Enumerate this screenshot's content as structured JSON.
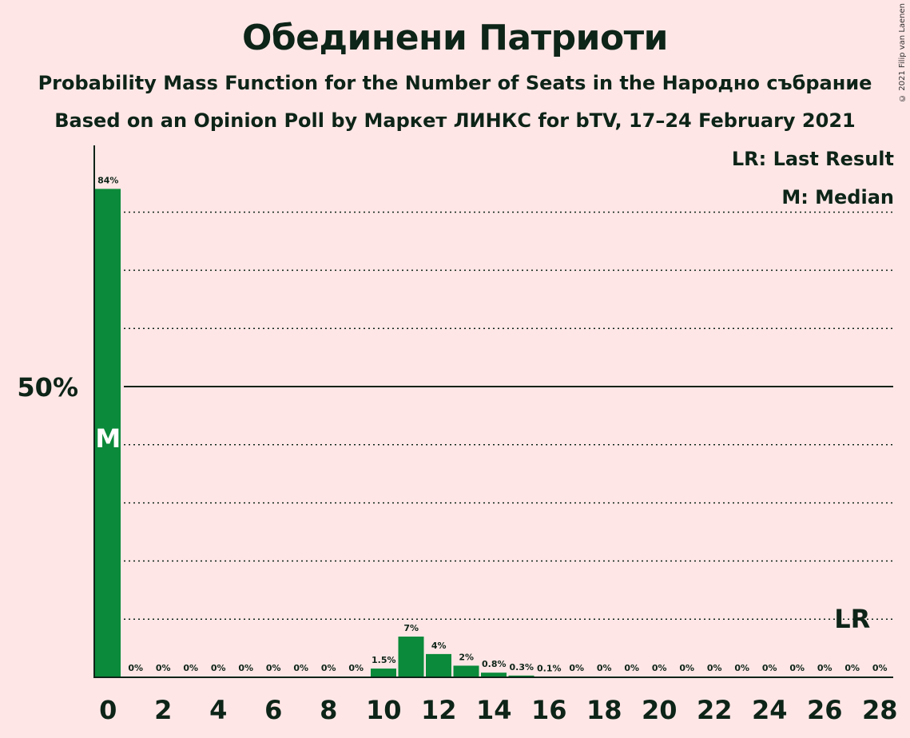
{
  "title": "Обединени Патриоти",
  "subtitle_1": "Probability Mass Function for the Number of Seats in the Народно събрание",
  "subtitle_2": "Based on an Opinion Poll by Маркет ЛИНКС for bTV, 17–24 February 2021",
  "copyright": "© 2021 Filip van Laenen",
  "legend": {
    "last_result": "LR: Last Result",
    "median": "M: Median"
  },
  "colors": {
    "bar": "#0a8a3a",
    "background": "#ffe6e6",
    "text": "#0d2418"
  },
  "chart_data": {
    "type": "bar",
    "x": [
      0,
      1,
      2,
      3,
      4,
      5,
      6,
      7,
      8,
      9,
      10,
      11,
      12,
      13,
      14,
      15,
      16,
      17,
      18,
      19,
      20,
      21,
      22,
      23,
      24,
      25,
      26,
      27,
      28
    ],
    "values": [
      84,
      0,
      0,
      0,
      0,
      0,
      0,
      0,
      0,
      0,
      1.5,
      7,
      4,
      2,
      0.8,
      0.3,
      0.1,
      0,
      0,
      0,
      0,
      0,
      0,
      0,
      0,
      0,
      0,
      0,
      0
    ],
    "data_labels": [
      "84%",
      "0%",
      "0%",
      "0%",
      "0%",
      "0%",
      "0%",
      "0%",
      "0%",
      "0%",
      "1.5%",
      "7%",
      "4%",
      "2%",
      "0.8%",
      "0.3%",
      "0.1%",
      "0%",
      "0%",
      "0%",
      "0%",
      "0%",
      "0%",
      "0%",
      "0%",
      "0%",
      "0%",
      "0%",
      "0%"
    ],
    "x_tick_labels": [
      "0",
      "2",
      "4",
      "6",
      "8",
      "10",
      "12",
      "14",
      "16",
      "18",
      "20",
      "22",
      "24",
      "26",
      "28"
    ],
    "y_tick_label": "50%",
    "ylim": [
      0,
      90
    ],
    "gridlines": [
      10,
      20,
      30,
      40,
      60,
      70,
      80
    ],
    "major_gridline": 50,
    "median": 0,
    "median_label": "M",
    "last_result": 27,
    "last_result_label": "LR"
  }
}
